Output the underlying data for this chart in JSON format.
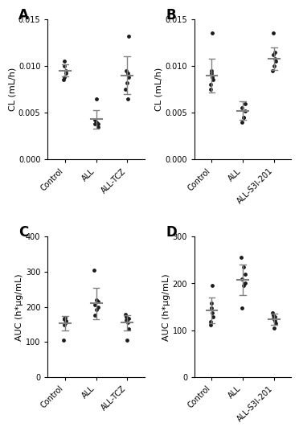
{
  "panel_A": {
    "label": "A",
    "ylabel": "CL (mL/h)",
    "ylim": [
      0,
      0.015
    ],
    "yticks": [
      0.0,
      0.005,
      0.01,
      0.015
    ],
    "categories": [
      "Control",
      "ALL",
      "ALL-TCZ"
    ],
    "points": [
      [
        0.0085,
        0.0088,
        0.0092,
        0.0095,
        0.01,
        0.0105
      ],
      [
        0.0065,
        0.0042,
        0.004,
        0.0038,
        0.0038,
        0.0035
      ],
      [
        0.0065,
        0.0075,
        0.0082,
        0.0088,
        0.0092,
        0.0095,
        0.0132
      ]
    ],
    "means": [
      0.0095,
      0.0043,
      0.009
    ],
    "sds": [
      0.00065,
      0.001,
      0.002
    ]
  },
  "panel_B": {
    "label": "B",
    "ylabel": "CL (mL/h)",
    "ylim": [
      0,
      0.015
    ],
    "yticks": [
      0.0,
      0.005,
      0.01,
      0.015
    ],
    "categories": [
      "Control",
      "ALL",
      "ALL-S3I-201"
    ],
    "points": [
      [
        0.0075,
        0.008,
        0.0085,
        0.0088,
        0.0092,
        0.0095,
        0.0135
      ],
      [
        0.004,
        0.0045,
        0.0052,
        0.0055,
        0.006,
        0.0045
      ],
      [
        0.0095,
        0.01,
        0.0105,
        0.0108,
        0.0112,
        0.0115,
        0.0135
      ]
    ],
    "means": [
      0.009,
      0.0052,
      0.0108
    ],
    "sds": [
      0.0018,
      0.001,
      0.0012
    ]
  },
  "panel_C": {
    "label": "C",
    "ylabel": "AUC (h*μg/mL)",
    "ylim": [
      0,
      400
    ],
    "yticks": [
      0,
      100,
      200,
      300,
      400
    ],
    "categories": [
      "Control",
      "ALL",
      "ALL-TCZ"
    ],
    "points": [
      [
        105,
        148,
        155,
        160,
        165,
        168,
        170
      ],
      [
        175,
        192,
        200,
        205,
        215,
        220,
        305
      ],
      [
        105,
        138,
        155,
        162,
        168,
        172,
        178
      ]
    ],
    "means": [
      153,
      210,
      155
    ],
    "sds": [
      20,
      45,
      22
    ]
  },
  "panel_D": {
    "label": "D",
    "ylabel": "AUC (h*μg/mL)",
    "ylim": [
      0,
      300
    ],
    "yticks": [
      0,
      100,
      200,
      300
    ],
    "categories": [
      "Control",
      "ALL",
      "ALL-S3I-201"
    ],
    "points": [
      [
        112,
        118,
        128,
        138,
        148,
        158,
        195
      ],
      [
        148,
        195,
        200,
        210,
        220,
        235,
        255
      ],
      [
        105,
        115,
        120,
        125,
        128,
        132,
        138
      ]
    ],
    "means": [
      142,
      208,
      124
    ],
    "sds": [
      28,
      33,
      12
    ]
  },
  "dot_color": "#1a1a1a",
  "line_color": "#808080",
  "dot_size": 12,
  "tick_label_fontsize": 7,
  "axis_label_fontsize": 8,
  "panel_label_fontsize": 12
}
